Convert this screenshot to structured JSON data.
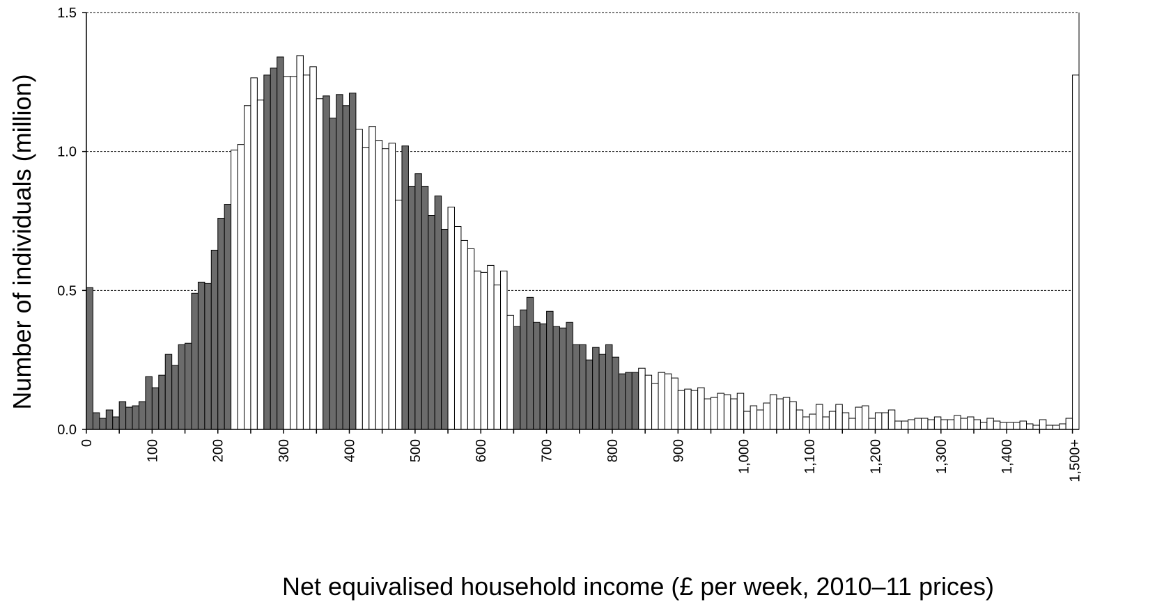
{
  "chart_data": {
    "type": "bar",
    "title": "",
    "xlabel": "Net equivalised household income (£ per week, 2010–11 prices)",
    "ylabel": "Number of individuals (million)",
    "ylim": [
      0,
      1.5
    ],
    "yticks": [
      {
        "value": 0,
        "label": "0.0"
      },
      {
        "value": 0.5,
        "label": "0.5"
      },
      {
        "value": 1.0,
        "label": "1.0"
      },
      {
        "value": 1.5,
        "label": "1.5"
      }
    ],
    "xticks": [
      {
        "value": 0,
        "label": "0"
      },
      {
        "value": 100,
        "label": "100"
      },
      {
        "value": 200,
        "label": "200"
      },
      {
        "value": 300,
        "label": "300"
      },
      {
        "value": 400,
        "label": "400"
      },
      {
        "value": 500,
        "label": "500"
      },
      {
        "value": 600,
        "label": "600"
      },
      {
        "value": 700,
        "label": "700"
      },
      {
        "value": 800,
        "label": "800"
      },
      {
        "value": 900,
        "label": "900"
      },
      {
        "value": 1000,
        "label": "1,000"
      },
      {
        "value": 1100,
        "label": "1,100"
      },
      {
        "value": 1200,
        "label": "1,200"
      },
      {
        "value": 1300,
        "label": "1,300"
      },
      {
        "value": 1400,
        "label": "1,400"
      },
      {
        "value": 1500,
        "label": "1,500+"
      }
    ],
    "grid": true,
    "bin_width": 10,
    "bin_starts": [
      0,
      10,
      20,
      30,
      40,
      50,
      60,
      70,
      80,
      90,
      100,
      110,
      120,
      130,
      140,
      150,
      160,
      170,
      180,
      190,
      200,
      210,
      220,
      230,
      240,
      250,
      260,
      270,
      280,
      290,
      300,
      310,
      320,
      330,
      340,
      350,
      360,
      370,
      380,
      390,
      400,
      410,
      420,
      430,
      440,
      450,
      460,
      470,
      480,
      490,
      500,
      510,
      520,
      530,
      540,
      550,
      560,
      570,
      580,
      590,
      600,
      610,
      620,
      630,
      640,
      650,
      660,
      670,
      680,
      690,
      700,
      710,
      720,
      730,
      740,
      750,
      760,
      770,
      780,
      790,
      800,
      810,
      820,
      830,
      840,
      850,
      860,
      870,
      880,
      890,
      900,
      910,
      920,
      930,
      940,
      950,
      960,
      970,
      980,
      990,
      1000,
      1010,
      1020,
      1030,
      1040,
      1050,
      1060,
      1070,
      1080,
      1090,
      1100,
      1110,
      1120,
      1130,
      1140,
      1150,
      1160,
      1170,
      1180,
      1190,
      1200,
      1210,
      1220,
      1230,
      1240,
      1250,
      1260,
      1270,
      1280,
      1290,
      1300,
      1310,
      1320,
      1330,
      1340,
      1350,
      1360,
      1370,
      1380,
      1390,
      1400,
      1410,
      1420,
      1430,
      1440,
      1450,
      1460,
      1470,
      1480,
      1490,
      1500
    ],
    "values": [
      0.51,
      0.06,
      0.04,
      0.07,
      0.045,
      0.1,
      0.08,
      0.085,
      0.1,
      0.19,
      0.15,
      0.195,
      0.27,
      0.23,
      0.305,
      0.31,
      0.49,
      0.53,
      0.525,
      0.645,
      0.76,
      0.81,
      1.005,
      1.025,
      1.165,
      1.265,
      1.185,
      1.275,
      1.3,
      1.34,
      1.27,
      1.27,
      1.345,
      1.275,
      1.305,
      1.19,
      1.2,
      1.12,
      1.205,
      1.165,
      1.21,
      1.08,
      1.015,
      1.09,
      1.04,
      1.01,
      1.03,
      0.825,
      1.02,
      0.875,
      0.92,
      0.875,
      0.77,
      0.84,
      0.72,
      0.8,
      0.73,
      0.68,
      0.65,
      0.57,
      0.565,
      0.59,
      0.52,
      0.57,
      0.41,
      0.37,
      0.43,
      0.475,
      0.385,
      0.38,
      0.425,
      0.37,
      0.365,
      0.385,
      0.305,
      0.305,
      0.25,
      0.295,
      0.27,
      0.305,
      0.26,
      0.2,
      0.205,
      0.205,
      0.22,
      0.195,
      0.165,
      0.205,
      0.2,
      0.185,
      0.14,
      0.145,
      0.14,
      0.15,
      0.11,
      0.115,
      0.13,
      0.125,
      0.11,
      0.13,
      0.065,
      0.085,
      0.07,
      0.095,
      0.125,
      0.11,
      0.115,
      0.1,
      0.07,
      0.045,
      0.055,
      0.09,
      0.045,
      0.065,
      0.09,
      0.06,
      0.04,
      0.08,
      0.085,
      0.04,
      0.06,
      0.06,
      0.07,
      0.03,
      0.03,
      0.035,
      0.04,
      0.04,
      0.035,
      0.045,
      0.035,
      0.035,
      0.05,
      0.04,
      0.045,
      0.035,
      0.025,
      0.04,
      0.03,
      0.025,
      0.025,
      0.025,
      0.03,
      0.02,
      0.015,
      0.035,
      0.015,
      0.015,
      0.02,
      0.04,
      1.275
    ],
    "fill_pattern": [
      {
        "from": 0,
        "to": 210,
        "fill": "dark"
      },
      {
        "from": 220,
        "to": 260,
        "fill": "light"
      },
      {
        "from": 270,
        "to": 290,
        "fill": "dark"
      },
      {
        "from": 300,
        "to": 350,
        "fill": "light"
      },
      {
        "from": 360,
        "to": 400,
        "fill": "dark"
      },
      {
        "from": 410,
        "to": 470,
        "fill": "light"
      },
      {
        "from": 480,
        "to": 540,
        "fill": "dark"
      },
      {
        "from": 550,
        "to": 640,
        "fill": "light"
      },
      {
        "from": 650,
        "to": 830,
        "fill": "dark"
      },
      {
        "from": 840,
        "to": 1500,
        "fill": "light"
      }
    ],
    "colors": {
      "dark": "#6b6b6b",
      "light": "#ffffff",
      "stroke": "#000000",
      "grid": "#000000"
    }
  }
}
